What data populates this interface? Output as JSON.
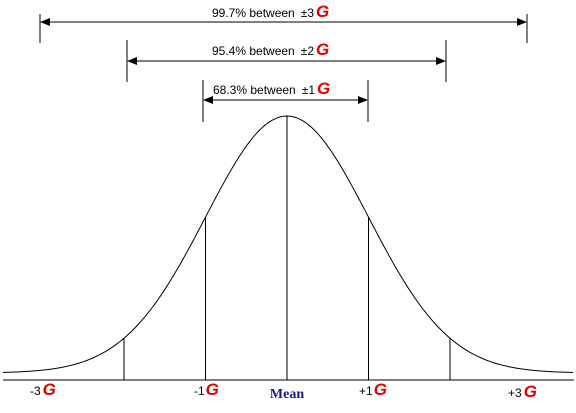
{
  "diagram": {
    "ranges": [
      {
        "id": "3",
        "pct": "99.7% between",
        "pm": "±3",
        "sigma_glyph": "G"
      },
      {
        "id": "2",
        "pct": "95.4% between",
        "pm": "±2",
        "sigma_glyph": "G"
      },
      {
        "id": "1",
        "pct": "68.3% between",
        "pm": "±1",
        "sigma_glyph": "G"
      }
    ],
    "ticks": [
      {
        "id": "minus3",
        "label": "-3",
        "sigma_glyph": "G"
      },
      {
        "id": "minus1",
        "label": "-1",
        "sigma_glyph": "G"
      },
      {
        "id": "plus1",
        "label": "+1",
        "sigma_glyph": "G"
      },
      {
        "id": "plus3",
        "label": "+3",
        "sigma_glyph": "G"
      }
    ],
    "mean_label": "Mean",
    "colors": {
      "sigma": "#e00000",
      "mean": "#1a1a8c",
      "line": "#000000"
    }
  }
}
